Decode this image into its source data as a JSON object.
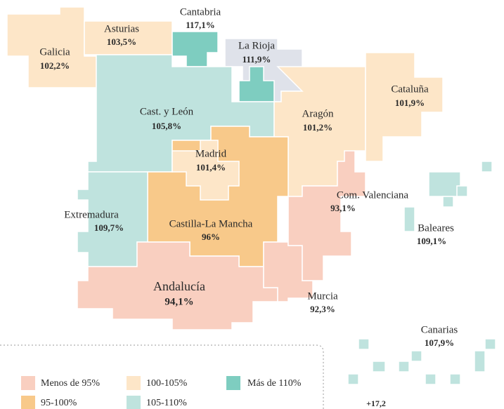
{
  "regions": [
    {
      "name": "Galicia",
      "value": "102,2%",
      "color": "#fde6c8"
    },
    {
      "name": "Asturias",
      "value": "103,5%",
      "color": "#fde6c8"
    },
    {
      "name": "Cantabria",
      "value": "117,1%",
      "color": "#7ecdc0"
    },
    {
      "name": "La Rioja",
      "value": "111,9%",
      "color": "#dfe2ea"
    },
    {
      "name": "Cast. y León",
      "value": "105,8%",
      "color": "#bfe3de"
    },
    {
      "name": "Aragón",
      "value": "101,2%",
      "color": "#fde6c8"
    },
    {
      "name": "Cataluña",
      "value": "101,9%",
      "color": "#fde6c8"
    },
    {
      "name": "Castilla-La Mancha",
      "value": "96%",
      "color": "#f8c98a"
    },
    {
      "name": "Madrid",
      "value": "101,4%",
      "color": "#fde6c8"
    },
    {
      "name": "Extremadura",
      "value": "109,7%",
      "color": "#bfe3de"
    },
    {
      "name": "Andalucía",
      "value": "94,1%",
      "color": "#f9cfc0"
    },
    {
      "name": "Murcia",
      "value": "92,3%",
      "color": "#f9cfc0"
    },
    {
      "name": "Com. Valenciana",
      "value": "93,1%",
      "color": "#f9cfc0"
    },
    {
      "name": "Baleares",
      "value": "109,1%",
      "color": "#bfe3de"
    },
    {
      "name": "Canarias",
      "value": "107,9%",
      "color": "#bfe3de"
    }
  ],
  "legend": [
    {
      "label": "Menos de 95%",
      "color": "#f9cfc0"
    },
    {
      "label": "100-105%",
      "color": "#fde6c8"
    },
    {
      "label": "Más de 110%",
      "color": "#7ecdc0"
    },
    {
      "label": "95-100%",
      "color": "#f8c98a"
    },
    {
      "label": "105-110%",
      "color": "#bfe3de"
    }
  ],
  "note": "+17,2"
}
